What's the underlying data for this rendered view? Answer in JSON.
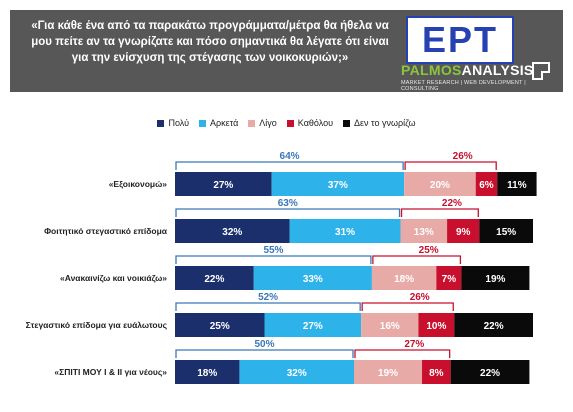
{
  "header": {
    "question": "«Για κάθε ένα από τα παρακάτω προγράμματα/μέτρα θα ήθελα να μου πείτε αν τα γνωρίζατε και πόσο σημαντικά θα λέγατε ότι είναι για την ενίσχυση της στέγασης των νοικοκυριών;»",
    "logo_ept": "EPT",
    "logo_palmos": "PALMOS",
    "logo_analysis": "ANALYSIS",
    "logo_tagline": "MARKET RESEARCH | WEB DEVELOPMENT | CONSULTING"
  },
  "colors": {
    "header_bg": "#575757",
    "ept_blue": "#2541b2",
    "palmos_green": "#8bc540"
  },
  "chart_data": {
    "type": "bar",
    "stacked": true,
    "orientation": "horizontal",
    "categories": [
      "«Εξοικονομώ»",
      "Φοιτητικό στεγαστικό επίδομα",
      "«Ανακαινίζω και νοικιάζω»",
      "Στεγαστικό επίδομα για ευάλωτους",
      "«ΣΠΙΤΙ ΜΟΥ Ι & ΙΙ για νέους»"
    ],
    "series": [
      {
        "name": "Πολύ",
        "color": "#1a2f6b",
        "values": [
          27,
          32,
          22,
          25,
          18
        ]
      },
      {
        "name": "Αρκετά",
        "color": "#2db3ea",
        "values": [
          37,
          31,
          33,
          27,
          32
        ]
      },
      {
        "name": "Λίγο",
        "color": "#e8aaa6",
        "values": [
          20,
          13,
          18,
          16,
          19
        ]
      },
      {
        "name": "Καθόλου",
        "color": "#c8102e",
        "values": [
          6,
          9,
          7,
          10,
          8
        ]
      },
      {
        "name": "Δεν το γνωρίζω",
        "color": "#0a0a0a",
        "values": [
          11,
          15,
          19,
          22,
          22
        ]
      }
    ],
    "positive_totals": [
      64,
      63,
      55,
      52,
      50
    ],
    "negative_totals": [
      26,
      22,
      25,
      26,
      27
    ],
    "positive_color": "#3a78b8",
    "negative_color": "#c8102e",
    "value_suffix": "%",
    "legend_position": "top"
  }
}
